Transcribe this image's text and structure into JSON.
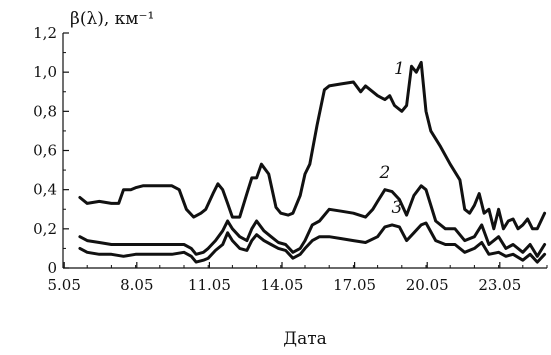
{
  "chart_data": {
    "type": "line",
    "ylabel": "β(λ), км⁻¹",
    "xlabel": "Дата",
    "x_ticks": [
      "5.05",
      "8.05",
      "11.05",
      "14.05",
      "17.05",
      "20.05",
      "23.05"
    ],
    "y_ticks": [
      "0",
      "0,2",
      "0,4",
      "0,6",
      "0,8",
      "1,0",
      "1,2"
    ],
    "xlim": [
      5,
      25
    ],
    "ylim": [
      0,
      1.2
    ],
    "grid": false,
    "series": [
      {
        "name": "1",
        "x": [
          5.7,
          6.0,
          6.5,
          7.0,
          7.3,
          7.5,
          7.8,
          8.0,
          8.3,
          8.6,
          9.0,
          9.5,
          9.8,
          10.1,
          10.4,
          10.7,
          10.9,
          11.2,
          11.4,
          11.6,
          11.8,
          12.0,
          12.3,
          12.6,
          12.8,
          13.0,
          13.2,
          13.5,
          13.8,
          14.0,
          14.3,
          14.5,
          14.8,
          15.0,
          15.2,
          15.5,
          15.8,
          16.0,
          16.5,
          17.0,
          17.3,
          17.5,
          17.8,
          18.0,
          18.3,
          18.5,
          18.7,
          19.0,
          19.2,
          19.4,
          19.6,
          19.8,
          20.0,
          20.2,
          20.6,
          21.0,
          21.4,
          21.6,
          21.8,
          22.0,
          22.2,
          22.4,
          22.6,
          22.8,
          23.0,
          23.2,
          23.4,
          23.6,
          23.8,
          24.0,
          24.2,
          24.4,
          24.6,
          24.9
        ],
        "y": [
          0.36,
          0.33,
          0.34,
          0.33,
          0.33,
          0.4,
          0.4,
          0.41,
          0.42,
          0.42,
          0.42,
          0.42,
          0.4,
          0.3,
          0.26,
          0.28,
          0.3,
          0.38,
          0.43,
          0.4,
          0.33,
          0.26,
          0.26,
          0.38,
          0.46,
          0.46,
          0.53,
          0.48,
          0.31,
          0.28,
          0.27,
          0.28,
          0.37,
          0.48,
          0.53,
          0.73,
          0.91,
          0.93,
          0.94,
          0.95,
          0.9,
          0.93,
          0.9,
          0.88,
          0.86,
          0.88,
          0.83,
          0.8,
          0.83,
          1.03,
          1.0,
          1.05,
          0.8,
          0.7,
          0.62,
          0.53,
          0.45,
          0.3,
          0.28,
          0.32,
          0.38,
          0.28,
          0.3,
          0.2,
          0.3,
          0.2,
          0.24,
          0.25,
          0.2,
          0.22,
          0.25,
          0.2,
          0.2,
          0.28
        ]
      },
      {
        "name": "2",
        "x": [
          5.7,
          6.0,
          6.5,
          7.0,
          7.5,
          8.0,
          8.5,
          9.0,
          9.5,
          10.0,
          10.3,
          10.5,
          10.8,
          11.0,
          11.3,
          11.6,
          11.8,
          12.0,
          12.3,
          12.6,
          12.8,
          13.0,
          13.3,
          13.6,
          13.9,
          14.2,
          14.5,
          14.8,
          15.0,
          15.3,
          15.6,
          16.0,
          16.5,
          17.0,
          17.5,
          17.8,
          18.0,
          18.3,
          18.6,
          18.9,
          19.2,
          19.5,
          19.8,
          20.0,
          20.4,
          20.8,
          21.2,
          21.6,
          22.0,
          22.3,
          22.6,
          23.0,
          23.3,
          23.6,
          24.0,
          24.3,
          24.6,
          24.9
        ],
        "y": [
          0.16,
          0.14,
          0.13,
          0.12,
          0.12,
          0.12,
          0.12,
          0.12,
          0.12,
          0.12,
          0.1,
          0.07,
          0.08,
          0.1,
          0.14,
          0.19,
          0.24,
          0.2,
          0.16,
          0.14,
          0.2,
          0.24,
          0.19,
          0.16,
          0.13,
          0.12,
          0.08,
          0.1,
          0.14,
          0.22,
          0.24,
          0.3,
          0.29,
          0.28,
          0.26,
          0.3,
          0.34,
          0.4,
          0.39,
          0.35,
          0.27,
          0.37,
          0.42,
          0.4,
          0.24,
          0.2,
          0.2,
          0.14,
          0.16,
          0.22,
          0.12,
          0.16,
          0.1,
          0.12,
          0.08,
          0.12,
          0.06,
          0.12
        ]
      },
      {
        "name": "3",
        "x": [
          5.7,
          6.0,
          6.5,
          7.0,
          7.5,
          8.0,
          8.5,
          9.0,
          9.5,
          10.0,
          10.3,
          10.5,
          10.8,
          11.0,
          11.3,
          11.6,
          11.8,
          12.0,
          12.3,
          12.6,
          12.8,
          13.0,
          13.3,
          13.6,
          13.9,
          14.2,
          14.5,
          14.8,
          15.0,
          15.3,
          15.6,
          16.0,
          16.5,
          17.0,
          17.5,
          18.0,
          18.3,
          18.6,
          18.9,
          19.2,
          19.5,
          19.8,
          20.0,
          20.4,
          20.8,
          21.2,
          21.6,
          22.0,
          22.3,
          22.6,
          23.0,
          23.3,
          23.6,
          24.0,
          24.3,
          24.6,
          24.9
        ],
        "y": [
          0.1,
          0.08,
          0.07,
          0.07,
          0.06,
          0.07,
          0.07,
          0.07,
          0.07,
          0.08,
          0.06,
          0.03,
          0.04,
          0.05,
          0.09,
          0.12,
          0.18,
          0.14,
          0.1,
          0.09,
          0.14,
          0.17,
          0.14,
          0.12,
          0.1,
          0.09,
          0.05,
          0.07,
          0.1,
          0.14,
          0.16,
          0.16,
          0.15,
          0.14,
          0.13,
          0.16,
          0.21,
          0.22,
          0.21,
          0.14,
          0.18,
          0.22,
          0.23,
          0.14,
          0.12,
          0.12,
          0.08,
          0.1,
          0.13,
          0.07,
          0.08,
          0.06,
          0.07,
          0.04,
          0.07,
          0.03,
          0.07
        ]
      }
    ],
    "curve_labels": [
      {
        "text": "1",
        "x": 18.9,
        "y": 0.99
      },
      {
        "text": "2",
        "x": 18.3,
        "y": 0.46
      },
      {
        "text": "3",
        "x": 18.8,
        "y": 0.28
      }
    ],
    "line_color": "#111111"
  }
}
